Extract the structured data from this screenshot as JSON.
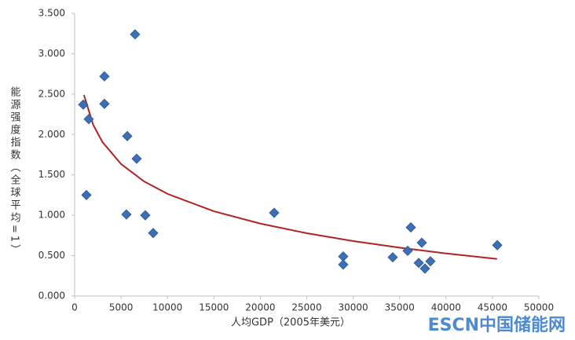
{
  "chart_data": {
    "type": "scatter",
    "xlabel": "人均GDP（2005年美元）",
    "ylabel": "能源强度指数（全球平均=1）",
    "watermark": "ESCN中国储能网",
    "x": [
      930,
      1270,
      1520,
      3210,
      3210,
      5670,
      5580,
      6510,
      6680,
      7610,
      8460,
      21490,
      28930,
      28930,
      34260,
      35870,
      36210,
      37060,
      37390,
      37730,
      38320,
      45520
    ],
    "series": [
      {
        "color": "#3b6fb6",
        "values": [
          2.37,
          1.25,
          2.19,
          2.72,
          2.38,
          1.98,
          1.01,
          3.24,
          1.7,
          1.0,
          0.78,
          1.03,
          0.49,
          0.39,
          0.48,
          0.56,
          0.85,
          0.41,
          0.66,
          0.34,
          0.43,
          0.63
        ]
      }
    ],
    "trendline": {
      "color": "#b22222",
      "x": [
        1000,
        2000,
        3000,
        5000,
        7500,
        10000,
        15000,
        20000,
        25000,
        30000,
        35000,
        40000,
        45500
      ],
      "values": [
        2.49,
        2.12,
        1.906,
        1.634,
        1.418,
        1.265,
        1.049,
        0.897,
        0.778,
        0.681,
        0.599,
        0.527,
        0.459
      ]
    },
    "xlim": [
      0,
      50000
    ],
    "xticks": [
      0,
      5000,
      10000,
      15000,
      20000,
      25000,
      30000,
      35000,
      40000,
      45000,
      50000
    ],
    "ylim": [
      0,
      3.5
    ],
    "yticks": [
      {
        "value": 0,
        "label": "0.000"
      },
      {
        "value": 0.5,
        "label": "0.500"
      },
      {
        "value": 1,
        "label": "1.000"
      },
      {
        "value": 1.5,
        "label": "1.500"
      },
      {
        "value": 2,
        "label": "2.000"
      },
      {
        "value": 2.5,
        "label": "2.500"
      },
      {
        "value": 3,
        "label": "3.000"
      },
      {
        "value": 3.5,
        "label": "3.500"
      }
    ],
    "grid": false
  }
}
